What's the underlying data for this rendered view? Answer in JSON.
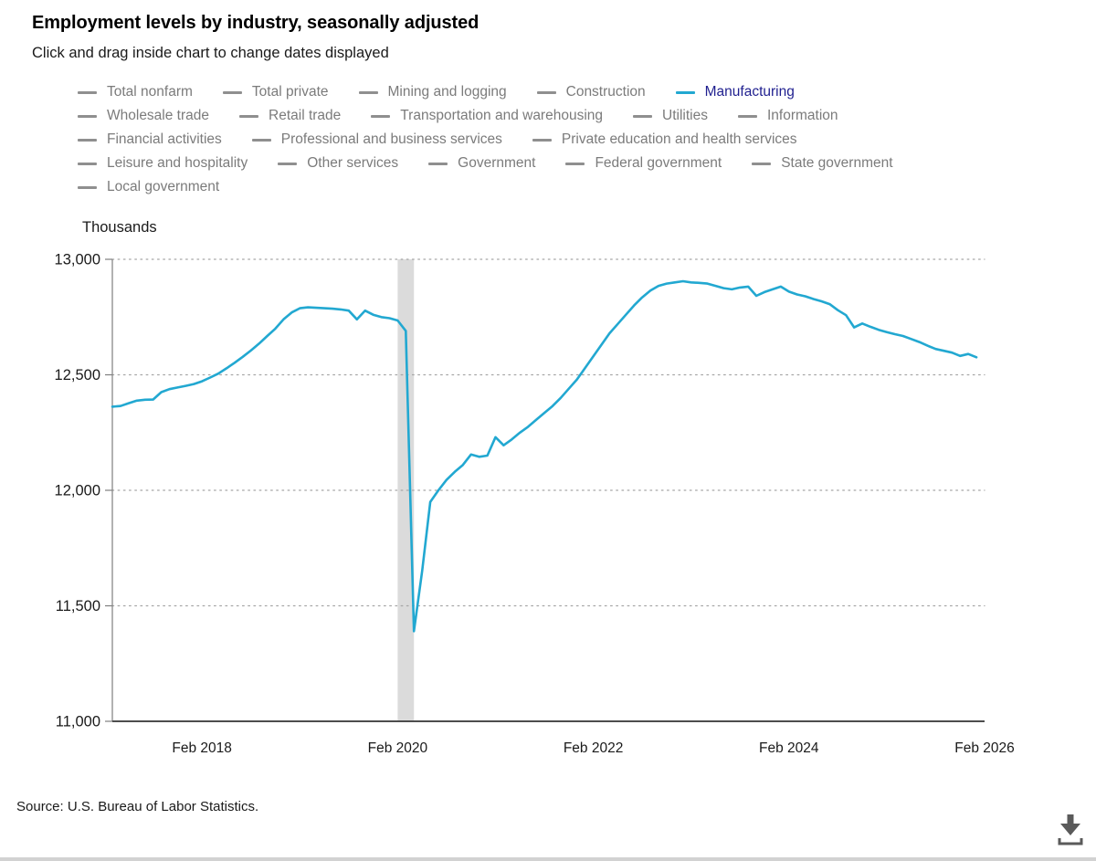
{
  "header": {
    "title": "Employment levels by industry, seasonally adjusted",
    "subtitle": "Click and drag inside chart to change dates displayed"
  },
  "legend": {
    "inactive_text_color": "#7b7b7b",
    "active_text_color": "#1F1F8F",
    "inactive_dash_color": "#8f8f8f",
    "rows": [
      [
        {
          "label": "Total nonfarm",
          "active": false
        },
        {
          "label": "Total private",
          "active": false
        },
        {
          "label": "Mining and logging",
          "active": false
        },
        {
          "label": "Construction",
          "active": false
        },
        {
          "label": "Manufacturing",
          "active": true
        }
      ],
      [
        {
          "label": "Wholesale trade",
          "active": false
        },
        {
          "label": "Retail trade",
          "active": false
        },
        {
          "label": "Transportation and warehousing",
          "active": false
        },
        {
          "label": "Utilities",
          "active": false
        },
        {
          "label": "Information",
          "active": false
        }
      ],
      [
        {
          "label": "Financial activities",
          "active": false
        },
        {
          "label": "Professional and business services",
          "active": false
        },
        {
          "label": "Private education and health services",
          "active": false
        }
      ],
      [
        {
          "label": "Leisure and hospitality",
          "active": false
        },
        {
          "label": "Other services",
          "active": false
        },
        {
          "label": "Government",
          "active": false
        },
        {
          "label": "Federal government",
          "active": false
        },
        {
          "label": "State government",
          "active": false
        }
      ],
      [
        {
          "label": "Local government",
          "active": false
        }
      ]
    ]
  },
  "chart_data": {
    "type": "line",
    "ylabel": "Thousands",
    "ylim": [
      11000,
      13000
    ],
    "yticks": [
      {
        "value": 13000,
        "label": "13,000"
      },
      {
        "value": 12500,
        "label": "12,500"
      },
      {
        "value": 12000,
        "label": "12,000"
      },
      {
        "value": 11500,
        "label": "11,500"
      },
      {
        "value": 11000,
        "label": "11,000"
      }
    ],
    "x_start": "2017-03",
    "x_end": "2026-02",
    "x_frequency": "monthly",
    "xticks": [
      {
        "month": "2018-02",
        "label": "Feb 2018"
      },
      {
        "month": "2020-02",
        "label": "Feb 2020"
      },
      {
        "month": "2022-02",
        "label": "Feb 2022"
      },
      {
        "month": "2024-02",
        "label": "Feb 2024"
      },
      {
        "month": "2026-02",
        "label": "Feb 2026"
      }
    ],
    "grid": "dotted horizontal gridlines at y ticks, solid bottom axis",
    "recession_band": {
      "from": "2020-02",
      "to": "2020-04",
      "color": "#DBDBDB"
    },
    "series": [
      {
        "name": "Manufacturing",
        "color": "#22A8D1",
        "first_month": "2017-03",
        "values": [
          12362,
          12365,
          12377,
          12388,
          12392,
          12393,
          12425,
          12438,
          12445,
          12452,
          12460,
          12472,
          12488,
          12505,
          12528,
          12552,
          12578,
          12605,
          12635,
          12668,
          12700,
          12740,
          12770,
          12788,
          12792,
          12790,
          12788,
          12786,
          12783,
          12778,
          12740,
          12778,
          12760,
          12750,
          12745,
          12735,
          12690,
          11390,
          11650,
          11950,
          12000,
          12045,
          12080,
          12110,
          12155,
          12145,
          12150,
          12230,
          12195,
          12220,
          12250,
          12275,
          12305,
          12335,
          12365,
          12400,
          12440,
          12480,
          12530,
          12580,
          12630,
          12680,
          12720,
          12760,
          12800,
          12835,
          12865,
          12885,
          12895,
          12900,
          12905,
          12900,
          12898,
          12895,
          12885,
          12875,
          12870,
          12878,
          12882,
          12842,
          12858,
          12870,
          12882,
          12860,
          12848,
          12840,
          12828,
          12818,
          12806,
          12780,
          12758,
          12705,
          12722,
          12708,
          12695,
          12685,
          12676,
          12668,
          12655,
          12642,
          12626,
          12612,
          12604,
          12596,
          12582,
          12590,
          12576
        ]
      }
    ]
  },
  "footer": {
    "source": "Source: U.S. Bureau of Labor Statistics."
  },
  "toolbar": {
    "download_icon": "download-chart"
  }
}
